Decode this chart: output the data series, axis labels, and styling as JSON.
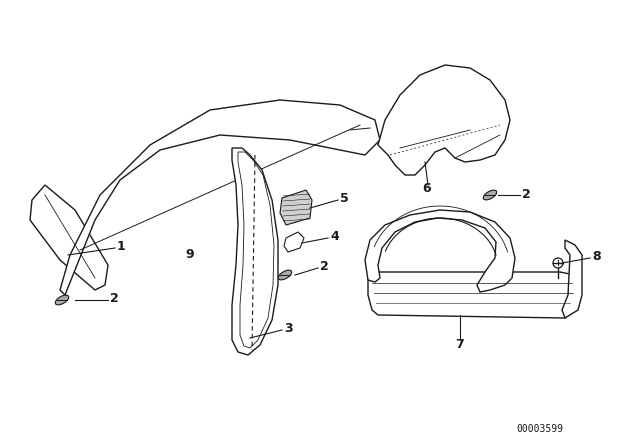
{
  "bg_color": "#ffffff",
  "line_color": "#1a1a1a",
  "part_number": "00003599",
  "figsize": [
    6.4,
    4.48
  ],
  "dpi": 100
}
